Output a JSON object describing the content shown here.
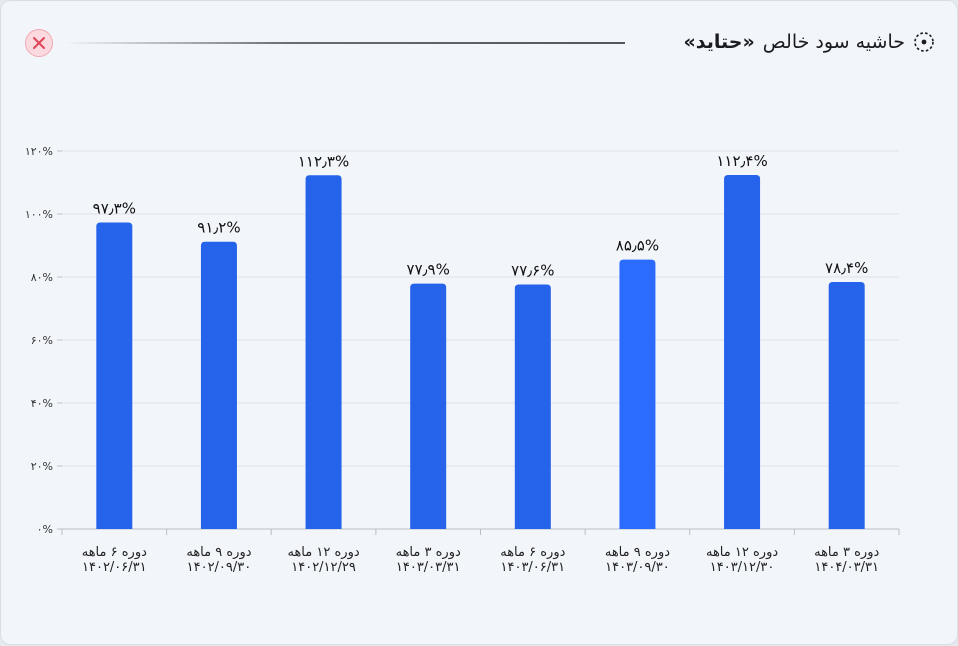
{
  "header": {
    "title_prefix": "حاشیه سود خالص",
    "title_company": "«حتاید»",
    "title_icon": "target-dots-icon",
    "close_icon": "close-icon"
  },
  "colors": {
    "bar": "#2563eb",
    "bar_highlight": "#2b6cff",
    "grid": "#dfe3ea",
    "axis": "#b9bec8"
  },
  "chart_data": {
    "type": "bar",
    "categories": [
      [
        "دوره ۶ ماهه",
        "۱۴۰۲/۰۶/۳۱"
      ],
      [
        "دوره ۹ ماهه",
        "۱۴۰۲/۰۹/۳۰"
      ],
      [
        "دوره ۱۲ ماهه",
        "۱۴۰۲/۱۲/۲۹"
      ],
      [
        "دوره ۳ ماهه",
        "۱۴۰۳/۰۳/۳۱"
      ],
      [
        "دوره ۶ ماهه",
        "۱۴۰۳/۰۶/۳۱"
      ],
      [
        "دوره ۹ ماهه",
        "۱۴۰۳/۰۹/۳۰"
      ],
      [
        "دوره ۱۲ ماهه",
        "۱۴۰۳/۱۲/۳۰"
      ],
      [
        "دوره ۳ ماهه",
        "۱۴۰۴/۰۳/۳۱"
      ]
    ],
    "values": [
      97.3,
      91.2,
      112.3,
      77.9,
      77.6,
      85.5,
      112.4,
      78.4
    ],
    "value_labels": [
      "۹۷٫۳%",
      "۹۱٫۲%",
      "۱۱۲٫۳%",
      "۷۷٫۹%",
      "۷۷٫۶%",
      "۸۵٫۵%",
      "۱۱۲٫۴%",
      "۷۸٫۴%"
    ],
    "highlight_index": 5,
    "ylim": [
      0,
      120
    ],
    "yticks": [
      0,
      20,
      40,
      60,
      80,
      100,
      120
    ],
    "ytick_labels": [
      "۰%",
      "۲۰%",
      "۴۰%",
      "۶۰%",
      "۸۰%",
      "۱۰۰%",
      "۱۲۰%"
    ],
    "grid": true,
    "title": "",
    "xlabel": "",
    "ylabel": ""
  }
}
